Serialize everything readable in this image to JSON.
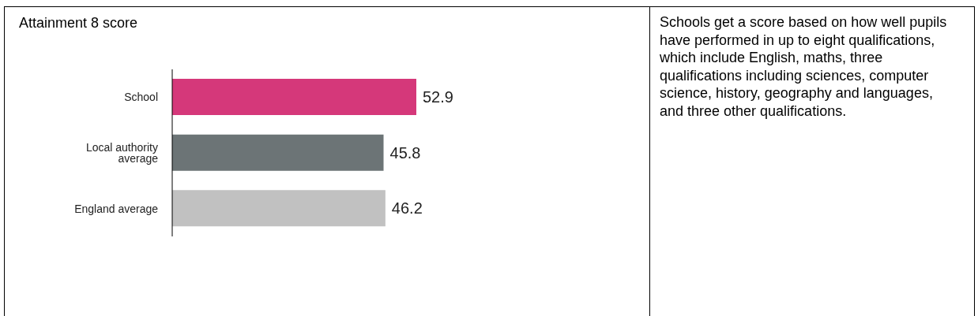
{
  "chart_data": {
    "type": "bar",
    "orientation": "horizontal",
    "title": "Attainment 8 score",
    "categories": [
      "School",
      "Local authority average",
      "England average"
    ],
    "values": [
      52.9,
      45.8,
      46.2
    ],
    "colors": [
      "#d5387a",
      "#6c7476",
      "#c1c1c1"
    ],
    "data_labels": true,
    "annotations": [
      "Schools get a score based on how well pupils have performed in up to eight qualifications, which include English, maths, three qualifications including sciences, computer science, history, geography and languages, and three other qualifications."
    ]
  }
}
